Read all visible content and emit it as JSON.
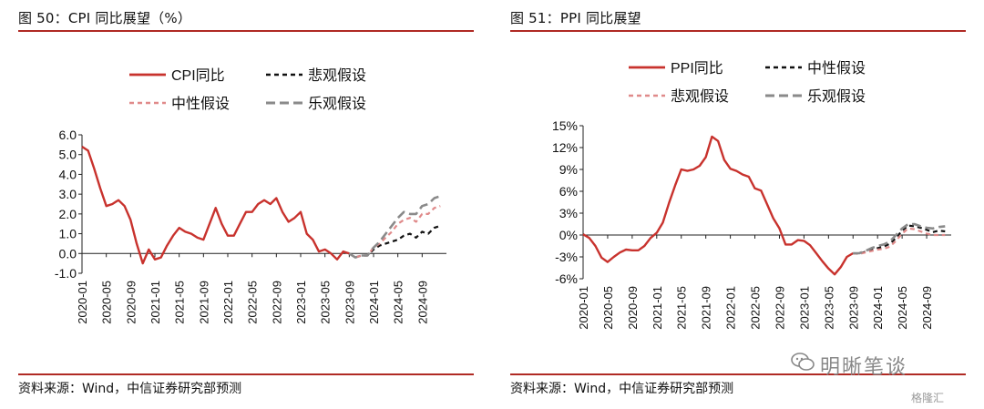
{
  "panels": [
    {
      "title": "图 50：CPI 同比展望（%）",
      "source": "资料来源：Wind，中信证券研究部预测"
    },
    {
      "title": "图 51：PPI 同比展望",
      "source": "资料来源：Wind，中信证券研究部预测"
    }
  ],
  "watermark": {
    "brand": "明晰笔谈",
    "corner": "格隆汇"
  },
  "colors": {
    "rule": "#b02a24",
    "actual": "#c8322d",
    "mid": "#111111",
    "pess_light": "#e08a8a",
    "opt_gray": "#8a8a8a"
  },
  "chart_data": [
    {
      "type": "line",
      "ylim": [
        -1,
        6
      ],
      "yticks": [
        -1,
        0,
        1,
        2,
        3,
        4,
        5,
        6
      ],
      "ytick_labels": [
        "-1.0",
        "0.0",
        "1.0",
        "2.0",
        "3.0",
        "4.0",
        "5.0",
        "6.0"
      ],
      "xlim": [
        "2020-01",
        "2025-01"
      ],
      "xtick_labels": [
        "2020-01",
        "2020-05",
        "2020-09",
        "2021-01",
        "2021-05",
        "2021-09",
        "2022-01",
        "2022-05",
        "2022-09",
        "2023-01",
        "2023-05",
        "2023-09",
        "2024-01",
        "2024-05",
        "2024-09"
      ],
      "legend_rows": [
        [
          "CPI同比",
          "悲观假设"
        ],
        [
          "中性假设",
          "乐观假设"
        ]
      ],
      "series": [
        {
          "name": "CPI同比",
          "style": "actual",
          "x": [
            "2020-01",
            "2020-02",
            "2020-03",
            "2020-04",
            "2020-05",
            "2020-06",
            "2020-07",
            "2020-08",
            "2020-09",
            "2020-10",
            "2020-11",
            "2020-12",
            "2021-01",
            "2021-02",
            "2021-03",
            "2021-04",
            "2021-05",
            "2021-06",
            "2021-07",
            "2021-08",
            "2021-09",
            "2021-10",
            "2021-11",
            "2021-12",
            "2022-01",
            "2022-02",
            "2022-03",
            "2022-04",
            "2022-05",
            "2022-06",
            "2022-07",
            "2022-08",
            "2022-09",
            "2022-10",
            "2022-11",
            "2022-12",
            "2023-01",
            "2023-02",
            "2023-03",
            "2023-04",
            "2023-05",
            "2023-06",
            "2023-07",
            "2023-08",
            "2023-09"
          ],
          "y": [
            5.4,
            5.2,
            4.3,
            3.3,
            2.4,
            2.5,
            2.7,
            2.4,
            1.7,
            0.5,
            -0.5,
            0.2,
            -0.3,
            -0.2,
            0.4,
            0.9,
            1.3,
            1.1,
            1.0,
            0.8,
            0.7,
            1.5,
            2.3,
            1.5,
            0.9,
            0.9,
            1.5,
            2.1,
            2.1,
            2.5,
            2.7,
            2.5,
            2.8,
            2.1,
            1.6,
            1.8,
            2.1,
            1.0,
            0.7,
            0.1,
            0.2,
            0.0,
            -0.3,
            0.1,
            0.0
          ]
        },
        {
          "name": "悲观假设",
          "style": "mid",
          "x": [
            "2023-09",
            "2023-10",
            "2023-11",
            "2023-12",
            "2024-01",
            "2024-02",
            "2024-03",
            "2024-04",
            "2024-05",
            "2024-06",
            "2024-07",
            "2024-08",
            "2024-09",
            "2024-10",
            "2024-11",
            "2024-12"
          ],
          "y": [
            0.0,
            -0.2,
            -0.1,
            -0.1,
            0.2,
            0.4,
            0.5,
            0.6,
            0.7,
            0.9,
            1.0,
            0.8,
            1.1,
            1.0,
            1.3,
            1.4
          ]
        },
        {
          "name": "中性假设",
          "style": "pess_light",
          "x": [
            "2023-09",
            "2023-10",
            "2023-11",
            "2023-12",
            "2024-01",
            "2024-02",
            "2024-03",
            "2024-04",
            "2024-05",
            "2024-06",
            "2024-07",
            "2024-08",
            "2024-09",
            "2024-10",
            "2024-11",
            "2024-12"
          ],
          "y": [
            0.0,
            -0.2,
            -0.1,
            -0.1,
            0.3,
            0.5,
            0.8,
            1.1,
            1.5,
            1.7,
            1.8,
            1.6,
            2.0,
            2.0,
            2.3,
            2.4
          ]
        },
        {
          "name": "乐观假设",
          "style": "opt_gray",
          "x": [
            "2023-09",
            "2023-10",
            "2023-11",
            "2023-12",
            "2024-01",
            "2024-02",
            "2024-03",
            "2024-04",
            "2024-05",
            "2024-06",
            "2024-07",
            "2024-08",
            "2024-09",
            "2024-10",
            "2024-11",
            "2024-12"
          ],
          "y": [
            0.0,
            -0.2,
            -0.1,
            -0.1,
            0.3,
            0.6,
            1.0,
            1.4,
            1.8,
            2.1,
            2.0,
            2.0,
            2.4,
            2.5,
            2.8,
            2.9
          ]
        }
      ]
    },
    {
      "type": "line",
      "ylim": [
        -6,
        15
      ],
      "yticks": [
        -6,
        -3,
        0,
        3,
        6,
        9,
        12,
        15
      ],
      "ytick_labels": [
        "-6%",
        "-3%",
        "0%",
        "3%",
        "6%",
        "9%",
        "12%",
        "15%"
      ],
      "xlim": [
        "2020-01",
        "2025-01"
      ],
      "xtick_labels": [
        "2020-01",
        "2020-05",
        "2020-09",
        "2021-01",
        "2021-05",
        "2021-09",
        "2022-01",
        "2022-05",
        "2022-09",
        "2023-01",
        "2023-05",
        "2023-09",
        "2024-01",
        "2024-05",
        "2024-09"
      ],
      "legend_rows": [
        [
          "PPI同比",
          "中性假设"
        ],
        [
          "悲观假设",
          "乐观假设"
        ]
      ],
      "series": [
        {
          "name": "PPI同比",
          "style": "actual",
          "x": [
            "2020-01",
            "2020-02",
            "2020-03",
            "2020-04",
            "2020-05",
            "2020-06",
            "2020-07",
            "2020-08",
            "2020-09",
            "2020-10",
            "2020-11",
            "2020-12",
            "2021-01",
            "2021-02",
            "2021-03",
            "2021-04",
            "2021-05",
            "2021-06",
            "2021-07",
            "2021-08",
            "2021-09",
            "2021-10",
            "2021-11",
            "2021-12",
            "2022-01",
            "2022-02",
            "2022-03",
            "2022-04",
            "2022-05",
            "2022-06",
            "2022-07",
            "2022-08",
            "2022-09",
            "2022-10",
            "2022-11",
            "2022-12",
            "2023-01",
            "2023-02",
            "2023-03",
            "2023-04",
            "2023-05",
            "2023-06",
            "2023-07",
            "2023-08",
            "2023-09"
          ],
          "y": [
            0.1,
            -0.4,
            -1.5,
            -3.1,
            -3.7,
            -3.0,
            -2.4,
            -2.0,
            -2.1,
            -2.1,
            -1.5,
            -0.4,
            0.3,
            1.7,
            4.4,
            6.8,
            9.0,
            8.8,
            9.0,
            9.5,
            10.7,
            13.5,
            12.9,
            10.3,
            9.1,
            8.8,
            8.3,
            8.0,
            6.4,
            6.1,
            4.2,
            2.3,
            0.9,
            -1.3,
            -1.3,
            -0.7,
            -0.8,
            -1.4,
            -2.5,
            -3.6,
            -4.6,
            -5.4,
            -4.4,
            -3.0,
            -2.5
          ]
        },
        {
          "name": "中性假设",
          "style": "mid",
          "x": [
            "2023-09",
            "2023-10",
            "2023-11",
            "2023-12",
            "2024-01",
            "2024-02",
            "2024-03",
            "2024-04",
            "2024-05",
            "2024-06",
            "2024-07",
            "2024-08",
            "2024-09",
            "2024-10",
            "2024-11",
            "2024-12"
          ],
          "y": [
            -2.5,
            -2.6,
            -2.3,
            -2.0,
            -1.8,
            -1.6,
            -1.2,
            -0.4,
            0.6,
            1.3,
            1.2,
            1.0,
            0.7,
            0.4,
            0.6,
            0.5
          ]
        },
        {
          "name": "悲观假设",
          "style": "pess_light",
          "x": [
            "2023-09",
            "2023-10",
            "2023-11",
            "2023-12",
            "2024-01",
            "2024-02",
            "2024-03",
            "2024-04",
            "2024-05",
            "2024-06",
            "2024-07",
            "2024-08",
            "2024-09",
            "2024-10",
            "2024-11",
            "2024-12"
          ],
          "y": [
            -2.5,
            -2.6,
            -2.4,
            -2.2,
            -2.0,
            -1.9,
            -1.6,
            -0.8,
            0.2,
            0.9,
            0.8,
            0.5,
            0.2,
            0.0,
            0.0,
            0.0
          ]
        },
        {
          "name": "乐观假设",
          "style": "opt_gray",
          "x": [
            "2023-09",
            "2023-10",
            "2023-11",
            "2023-12",
            "2024-01",
            "2024-02",
            "2024-03",
            "2024-04",
            "2024-05",
            "2024-06",
            "2024-07",
            "2024-08",
            "2024-09",
            "2024-10",
            "2024-11",
            "2024-12"
          ],
          "y": [
            -2.5,
            -2.5,
            -2.2,
            -1.8,
            -1.5,
            -1.3,
            -0.9,
            0.0,
            0.9,
            1.5,
            1.5,
            1.2,
            1.0,
            0.9,
            1.1,
            1.2
          ]
        }
      ]
    }
  ]
}
